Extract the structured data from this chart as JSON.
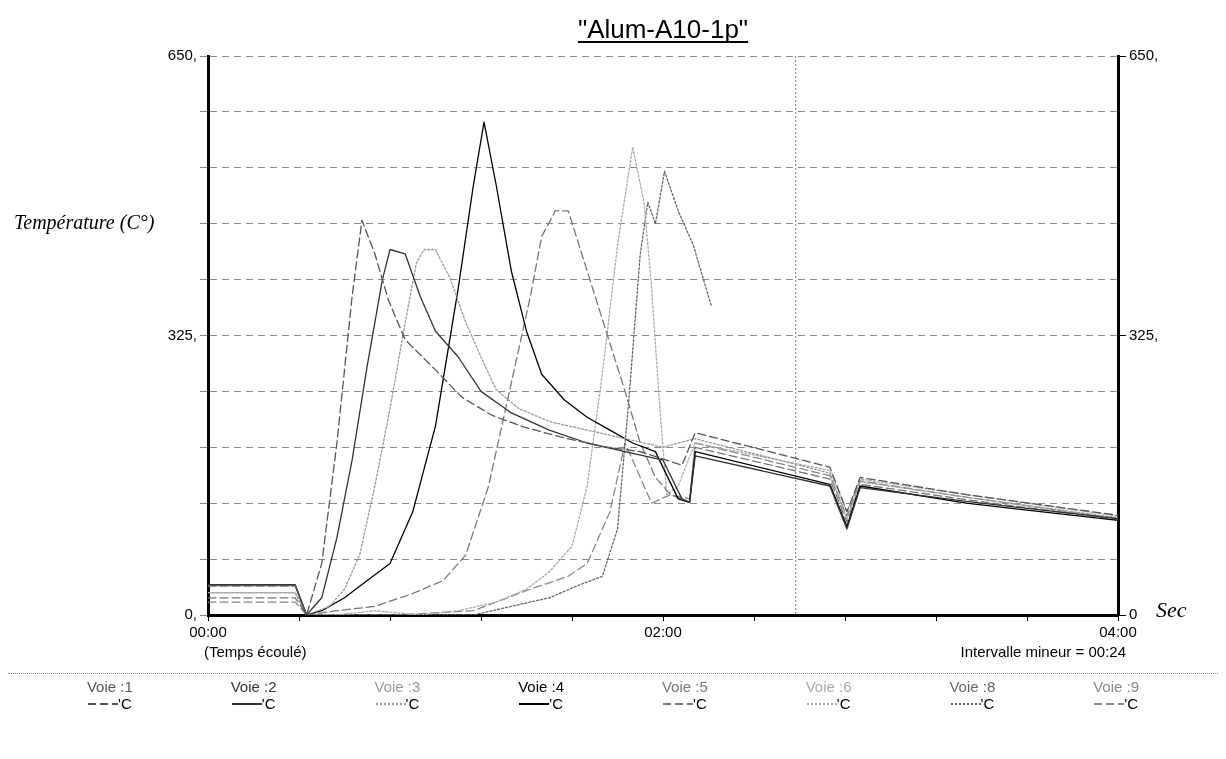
{
  "chart_data": {
    "type": "line",
    "title": "\"Alum-A10-1p\"",
    "ylabel": "Température (C°)",
    "xlabel": "(Temps écoulé)",
    "annotations": [
      "Intervalle mineur = 00:24",
      "Sec",
      "'C"
    ],
    "xlim": [
      0,
      240
    ],
    "xticks": [
      {
        "value": 0,
        "label": "00:00"
      },
      {
        "value": 24,
        "label": null
      },
      {
        "value": 48,
        "label": null
      },
      {
        "value": 72,
        "label": null
      },
      {
        "value": 96,
        "label": null
      },
      {
        "value": 120,
        "label": "02:00"
      },
      {
        "value": 144,
        "label": null
      },
      {
        "value": 168,
        "label": null
      },
      {
        "value": 192,
        "label": null
      },
      {
        "value": 216,
        "label": null
      },
      {
        "value": 240,
        "label": "04:00"
      }
    ],
    "ylim": [
      0,
      650
    ],
    "yticks": [
      {
        "value": 0,
        "label": "0,"
      },
      {
        "value": 65,
        "label": null
      },
      {
        "value": 130,
        "label": null
      },
      {
        "value": 195,
        "label": null
      },
      {
        "value": 260,
        "label": null
      },
      {
        "value": 325,
        "label": "325,"
      },
      {
        "value": 390,
        "label": null
      },
      {
        "value": 455,
        "label": null
      },
      {
        "value": 520,
        "label": null
      },
      {
        "value": 585,
        "label": null
      },
      {
        "value": 650,
        "label": "650,"
      }
    ],
    "y2lim": [
      0,
      650
    ],
    "y2ticks": [
      {
        "value": 0,
        "label": "0"
      },
      {
        "value": 325,
        "label": "325,"
      },
      {
        "value": 650,
        "label": "650,"
      }
    ],
    "grid": "y",
    "legend": "bottom",
    "marker": "none",
    "ref_lines": [
      {
        "axis": "x",
        "value": 155,
        "color": "#777777",
        "line_style": "dotted"
      }
    ],
    "series": [
      {
        "name": "Voie :1",
        "color": "#555555",
        "line_style": "dashed",
        "x": [
          0,
          23,
          26,
          30,
          34,
          38,
          40.6,
          44,
          47.6,
          52,
          60,
          67,
          75,
          83,
          93,
          104,
          114,
          125,
          128.5,
          164,
          168.5,
          172,
          200,
          240
        ],
        "values": [
          34,
          34,
          0,
          60,
          200,
          370,
          459,
          420,
          366,
          320,
          285,
          253,
          232,
          219,
          207,
          196,
          190,
          174,
          212,
          172,
          120,
          160,
          140,
          116
        ]
      },
      {
        "name": "Voie :2",
        "color": "#333333",
        "line_style": "solid",
        "x": [
          0,
          23,
          26,
          30,
          34,
          38,
          42,
          46,
          48,
          52,
          56,
          60,
          66,
          72,
          80,
          90,
          100,
          110,
          120,
          125,
          127,
          128.5,
          164,
          168.5,
          172,
          200,
          240
        ],
        "values": [
          35,
          35,
          0,
          20,
          90,
          180,
          290,
          390,
          425,
          420,
          370,
          330,
          300,
          260,
          235,
          215,
          200,
          190,
          180,
          135,
          131,
          185,
          150,
          100,
          148,
          132,
          112
        ]
      },
      {
        "name": "Voie :3",
        "color": "#999999",
        "line_style": "dotted",
        "x": [
          0,
          23,
          26,
          32,
          36,
          40,
          44,
          48,
          52,
          55,
          57,
          60,
          64,
          68,
          72,
          76,
          82,
          90,
          100,
          110,
          120,
          124,
          128.5,
          164,
          168.5,
          172,
          200,
          240
        ],
        "values": [
          34,
          34,
          0,
          10,
          30,
          70,
          150,
          240,
          340,
          410,
          425,
          425,
          390,
          340,
          300,
          262,
          240,
          225,
          215,
          205,
          195,
          200,
          205,
          165,
          112,
          155,
          137,
          113
        ]
      },
      {
        "name": "Voie :4",
        "color": "#000000",
        "line_style": "solid",
        "x": [
          0,
          23,
          26,
          30,
          36,
          42,
          48,
          54,
          60,
          66,
          70,
          72.8,
          76,
          80,
          84,
          88,
          94,
          100,
          106,
          112,
          118,
          124,
          127,
          128.5,
          164,
          168.5,
          172,
          200,
          240
        ],
        "values": [
          35,
          35,
          0,
          5,
          20,
          40,
          60,
          120,
          220,
          380,
          500,
          573,
          500,
          400,
          330,
          280,
          250,
          230,
          215,
          200,
          190,
          135,
          131,
          190,
          152,
          103,
          150,
          130,
          110
        ]
      },
      {
        "name": "Voie :5",
        "color": "#777777",
        "line_style": "dashed",
        "x": [
          0,
          23,
          26,
          34,
          44,
          54,
          62,
          68,
          74,
          80,
          85,
          88,
          91.6,
          95,
          100,
          105,
          110,
          114,
          118,
          122,
          127,
          128.5,
          164,
          168.5,
          172,
          200,
          240
        ],
        "values": [
          20,
          20,
          0,
          5,
          10,
          25,
          40,
          70,
          150,
          270,
          370,
          440,
          470,
          470,
          400,
          330,
          260,
          200,
          160,
          140,
          131,
          195,
          158,
          108,
          152,
          134,
          111
        ]
      },
      {
        "name": "Voie :6",
        "color": "#aaaaaa",
        "line_style": "dotted",
        "x": [
          0,
          23,
          26,
          34,
          44,
          56,
          66,
          76,
          84,
          90,
          96,
          100,
          104,
          108,
          112,
          115,
          117,
          119,
          121,
          124,
          128.5,
          164,
          168.5,
          172,
          200,
          240
        ],
        "values": [
          26,
          26,
          0,
          0,
          5,
          0,
          5,
          15,
          30,
          50,
          80,
          150,
          280,
          430,
          544,
          480,
          380,
          250,
          140,
          150,
          200,
          168,
          120,
          158,
          140,
          115
        ]
      },
      {
        "name": "Voie :8",
        "color": "#666666",
        "line_style": "dotted",
        "x": [
          0,
          23,
          26,
          40,
          56,
          70,
          80,
          90,
          98,
          104,
          108,
          111,
          114,
          116,
          118,
          120.4,
          124,
          128,
          132.7
        ],
        "values": [
          26,
          26,
          0,
          0,
          0,
          0,
          10,
          20,
          35,
          45,
          100,
          250,
          420,
          480,
          455,
          516,
          470,
          430,
          360
        ]
      },
      {
        "name": "Voie :9",
        "color": "#888888",
        "line_style": "dashed",
        "x": [
          0,
          23,
          26,
          50,
          70,
          85,
          95,
          100,
          106,
          110,
          114,
          117,
          122,
          127,
          128.5,
          164,
          168.5,
          172,
          200,
          240
        ],
        "values": [
          15,
          15,
          0,
          0,
          5,
          30,
          45,
          60,
          120,
          200,
          160,
          130,
          140,
          135,
          200,
          162,
          115,
          156,
          137,
          112
        ]
      }
    ]
  }
}
